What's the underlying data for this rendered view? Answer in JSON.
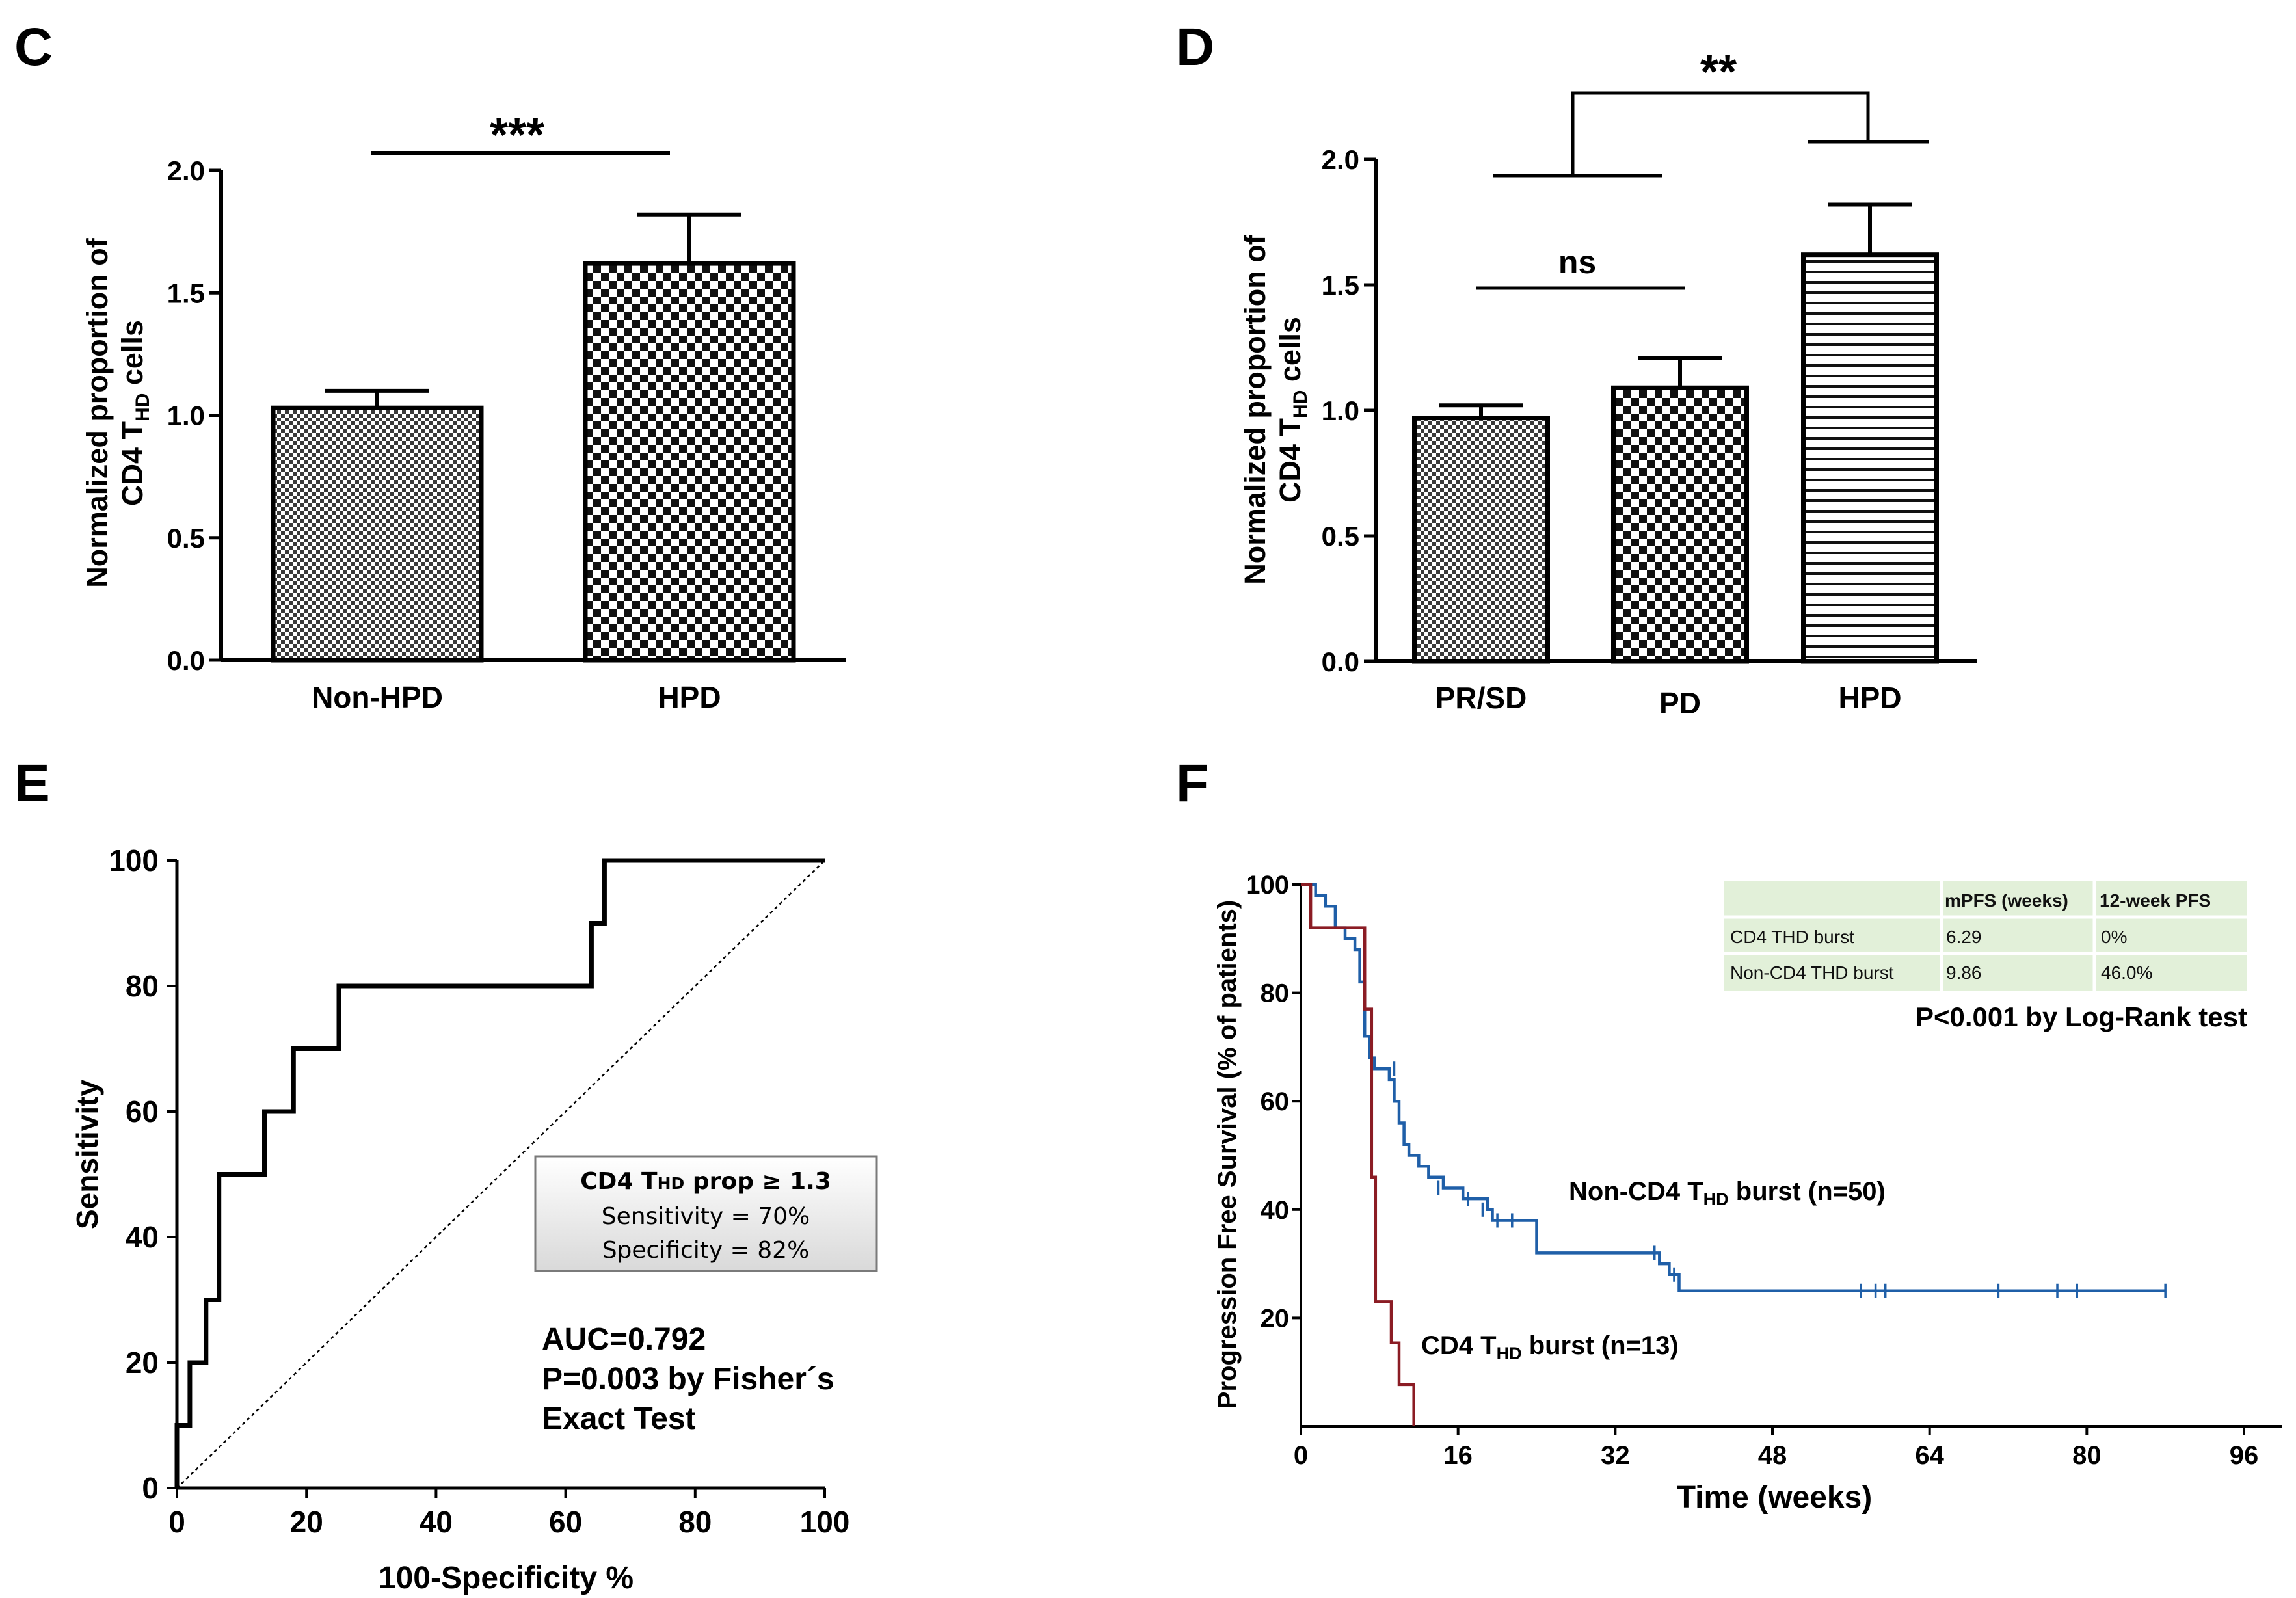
{
  "chart_data": [
    {
      "id": "C",
      "panel_label": "C",
      "type": "bar",
      "ylabel_line1": "Normalized proportion of",
      "ylabel_line2_pre": "CD4 T",
      "ylabel_line2_sub": "HD",
      "ylabel_line2_post": " cells",
      "ylim": [
        0,
        2.0
      ],
      "yticks": [
        "0.0",
        "0.5",
        "1.0",
        "1.5",
        "2.0"
      ],
      "categories": [
        "Non-HPD",
        "HPD"
      ],
      "values": [
        1.03,
        1.62
      ],
      "errors": [
        0.07,
        0.2
      ],
      "patterns": [
        "fine-check",
        "check"
      ],
      "significance": [
        {
          "label": "***",
          "between": [
            0,
            1
          ]
        }
      ]
    },
    {
      "id": "D",
      "panel_label": "D",
      "type": "bar",
      "ylabel_line1": "Normalized proportion of",
      "ylabel_line2_pre": "CD4 T",
      "ylabel_line2_sub": "HD",
      "ylabel_line2_post": " cells",
      "ylim": [
        0,
        2.0
      ],
      "yticks": [
        "0.0",
        "0.5",
        "1.0",
        "1.5",
        "2.0"
      ],
      "categories": [
        "PR/SD",
        "PD",
        "HPD"
      ],
      "values": [
        0.97,
        1.09,
        1.62
      ],
      "errors": [
        0.05,
        0.12,
        0.2
      ],
      "patterns": [
        "fine-check",
        "check",
        "hstripe"
      ],
      "significance": [
        {
          "label": "ns",
          "between": [
            0,
            1
          ]
        },
        {
          "label": "**",
          "between": [
            "PR/SD+PD",
            "HPD"
          ]
        }
      ]
    },
    {
      "id": "E",
      "panel_label": "E",
      "type": "line",
      "subtype": "roc",
      "xlabel": "100-Specificity %",
      "ylabel": "Sensitivity",
      "xlim": [
        0,
        100
      ],
      "ylim": [
        0,
        100
      ],
      "xticks": [
        "0",
        "20",
        "40",
        "60",
        "80",
        "100"
      ],
      "yticks": [
        "0",
        "20",
        "40",
        "60",
        "80",
        "100"
      ],
      "roc_x": [
        0,
        0,
        2,
        2,
        4.5,
        4.5,
        6.5,
        6.5,
        13.5,
        13.5,
        18,
        18,
        25,
        25,
        64,
        64,
        66,
        66,
        100
      ],
      "roc_y": [
        0,
        10,
        10,
        20,
        20,
        30,
        30,
        50,
        50,
        60,
        60,
        70,
        70,
        80,
        80,
        90,
        90,
        100,
        100
      ],
      "reference_line": [
        [
          0,
          0
        ],
        [
          100,
          100
        ]
      ],
      "box_line1_pre": "CD4 T",
      "box_line1_sub": "HD",
      "box_line1_post": " prop ≥  1.3",
      "box_line2": "Sensitivity = 70%",
      "box_line3": "Specificity = 82%",
      "annotation_line1": "AUC=0.792",
      "annotation_line2": "P=0.003 by Fisher´s",
      "annotation_line3": "Exact Test"
    },
    {
      "id": "F",
      "panel_label": "F",
      "type": "line",
      "subtype": "kaplan-meier",
      "xlabel": "Time (weeks)",
      "ylabel": "Progression Free Survival (% of patients)",
      "xlim": [
        0,
        96
      ],
      "ylim": [
        0,
        100
      ],
      "xticks": [
        "0",
        "16",
        "32",
        "48",
        "64",
        "80",
        "96"
      ],
      "yticks": [
        "20",
        "40",
        "60",
        "80",
        "100"
      ],
      "series": [
        {
          "name": "Non-CD4 THD burst (n=50)",
          "color": "#1f5fa8",
          "steps": [
            [
              0,
              100
            ],
            [
              1.5,
              98
            ],
            [
              2.5,
              96
            ],
            [
              3.5,
              92
            ],
            [
              4.5,
              90
            ],
            [
              5.5,
              88
            ],
            [
              6,
              82
            ],
            [
              6.5,
              72
            ],
            [
              7,
              68
            ],
            [
              7.5,
              66
            ],
            [
              9,
              64
            ],
            [
              9.5,
              60
            ],
            [
              10,
              56
            ],
            [
              10.5,
              52
            ],
            [
              11,
              50
            ],
            [
              12,
              48
            ],
            [
              13,
              46
            ],
            [
              14.5,
              44
            ],
            [
              16.5,
              42
            ],
            [
              19,
              40
            ],
            [
              19.5,
              38
            ],
            [
              24,
              32
            ],
            [
              36.5,
              30
            ],
            [
              37.5,
              28
            ],
            [
              38.5,
              25
            ],
            [
              88,
              25
            ]
          ],
          "censor_times": [
            [
              9.5,
              66
            ],
            [
              14,
              44
            ],
            [
              17,
              42
            ],
            [
              18.5,
              40
            ],
            [
              20,
              38
            ],
            [
              21.5,
              38
            ],
            [
              36,
              32
            ],
            [
              38,
              28
            ],
            [
              57,
              25
            ],
            [
              58.5,
              25
            ],
            [
              59.5,
              25
            ],
            [
              71,
              25
            ],
            [
              77,
              25
            ],
            [
              79,
              25
            ],
            [
              88,
              25
            ]
          ]
        },
        {
          "name": "CD4 THD burst (n=13)",
          "color": "#8b1c24",
          "steps": [
            [
              0,
              100
            ],
            [
              1,
              92
            ],
            [
              6,
              92
            ],
            [
              6.5,
              77
            ],
            [
              7.2,
              46
            ],
            [
              7.6,
              23
            ],
            [
              9.2,
              15.4
            ],
            [
              10,
              7.7
            ],
            [
              11.5,
              0
            ]
          ],
          "censor_times": []
        }
      ],
      "label_nonburst_pre": "Non-CD4 T",
      "label_nonburst_sub": "HD",
      "label_nonburst_post": " burst (n=50)",
      "label_burst_pre": "CD4 T",
      "label_burst_sub": "HD",
      "label_burst_post": " burst (n=13)",
      "table": {
        "header": [
          "",
          "mPFS (weeks)",
          "12-week PFS"
        ],
        "rows": [
          [
            "CD4 THD burst",
            "6.29",
            "0%"
          ],
          [
            "Non-CD4 THD burst",
            "9.86",
            "46.0%"
          ]
        ]
      },
      "test_label": "P<0.001 by Log-Rank test"
    }
  ]
}
